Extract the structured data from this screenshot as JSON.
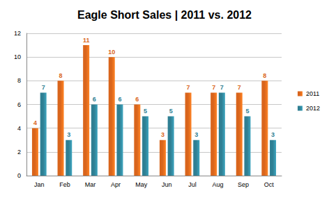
{
  "chart_data": {
    "type": "bar",
    "title": "Eagle Short Sales | 2011 vs. 2012",
    "categories": [
      "Jan",
      "Feb",
      "Mar",
      "Apr",
      "May",
      "Jun",
      "Jul",
      "Aug",
      "Sep",
      "Oct"
    ],
    "series": [
      {
        "name": "2011",
        "color": "#d9651c",
        "values": [
          4,
          8,
          11,
          10,
          6,
          3,
          7,
          7,
          7,
          8
        ]
      },
      {
        "name": "2012",
        "color": "#2f7f93",
        "values": [
          7,
          3,
          6,
          6,
          5,
          5,
          3,
          7,
          5,
          3
        ]
      }
    ],
    "ylim": [
      0,
      12
    ],
    "yticks": [
      0,
      2,
      4,
      6,
      8,
      10,
      12
    ],
    "grid": true,
    "legend": "right",
    "data_labels": true
  }
}
